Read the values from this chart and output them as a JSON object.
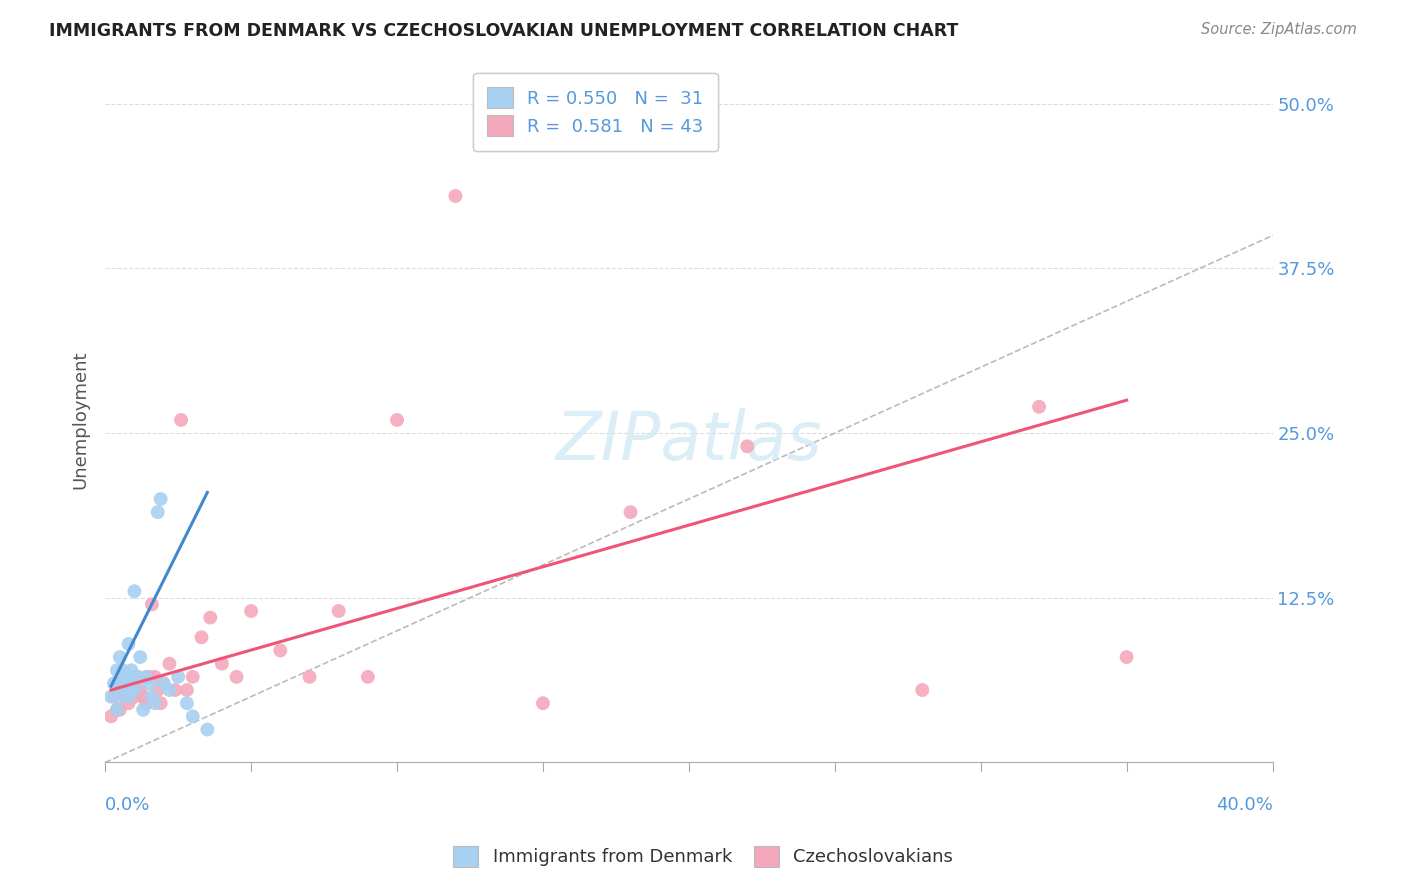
{
  "title": "IMMIGRANTS FROM DENMARK VS CZECHOSLOVAKIAN UNEMPLOYMENT CORRELATION CHART",
  "source": "Source: ZipAtlas.com",
  "ylabel": "Unemployment",
  "yticks": [
    "12.5%",
    "25.0%",
    "37.5%",
    "50.0%"
  ],
  "ytick_vals": [
    0.125,
    0.25,
    0.375,
    0.5
  ],
  "xlim": [
    0.0,
    0.4
  ],
  "ylim": [
    0.0,
    0.52
  ],
  "legend_blue_label": "R = 0.550   N =  31",
  "legend_pink_label": "R =  0.581   N = 43",
  "legend_bottom_blue": "Immigrants from Denmark",
  "legend_bottom_pink": "Czechoslovakians",
  "blue_color": "#A8D0F0",
  "pink_color": "#F4A8BC",
  "blue_line_color": "#4488CC",
  "pink_line_color": "#EE5577",
  "diagonal_color": "#BBBBBB",
  "text_blue": "#5599DD",
  "title_color": "#222222",
  "blue_scatter_x": [
    0.002,
    0.003,
    0.004,
    0.004,
    0.005,
    0.005,
    0.006,
    0.006,
    0.007,
    0.007,
    0.008,
    0.008,
    0.009,
    0.009,
    0.01,
    0.01,
    0.011,
    0.012,
    0.013,
    0.014,
    0.015,
    0.016,
    0.017,
    0.018,
    0.019,
    0.02,
    0.022,
    0.025,
    0.028,
    0.03,
    0.035
  ],
  "blue_scatter_y": [
    0.05,
    0.06,
    0.04,
    0.07,
    0.05,
    0.08,
    0.06,
    0.07,
    0.055,
    0.065,
    0.05,
    0.09,
    0.06,
    0.07,
    0.055,
    0.13,
    0.065,
    0.08,
    0.04,
    0.065,
    0.06,
    0.05,
    0.045,
    0.19,
    0.2,
    0.06,
    0.055,
    0.065,
    0.045,
    0.035,
    0.025
  ],
  "pink_scatter_x": [
    0.002,
    0.003,
    0.004,
    0.005,
    0.005,
    0.006,
    0.007,
    0.008,
    0.008,
    0.009,
    0.01,
    0.011,
    0.012,
    0.013,
    0.014,
    0.015,
    0.016,
    0.017,
    0.018,
    0.019,
    0.02,
    0.022,
    0.024,
    0.026,
    0.028,
    0.03,
    0.033,
    0.036,
    0.04,
    0.045,
    0.05,
    0.06,
    0.07,
    0.08,
    0.09,
    0.1,
    0.12,
    0.15,
    0.18,
    0.22,
    0.28,
    0.32,
    0.35
  ],
  "pink_scatter_y": [
    0.035,
    0.05,
    0.04,
    0.06,
    0.04,
    0.055,
    0.05,
    0.045,
    0.065,
    0.055,
    0.05,
    0.065,
    0.055,
    0.05,
    0.045,
    0.065,
    0.12,
    0.065,
    0.055,
    0.045,
    0.06,
    0.075,
    0.055,
    0.26,
    0.055,
    0.065,
    0.095,
    0.11,
    0.075,
    0.065,
    0.115,
    0.085,
    0.065,
    0.115,
    0.065,
    0.26,
    0.43,
    0.045,
    0.19,
    0.24,
    0.055,
    0.27,
    0.08
  ],
  "blue_line_x": [
    0.002,
    0.035
  ],
  "blue_line_y": [
    0.058,
    0.205
  ],
  "pink_line_x": [
    0.002,
    0.35
  ],
  "pink_line_y": [
    0.055,
    0.275
  ]
}
